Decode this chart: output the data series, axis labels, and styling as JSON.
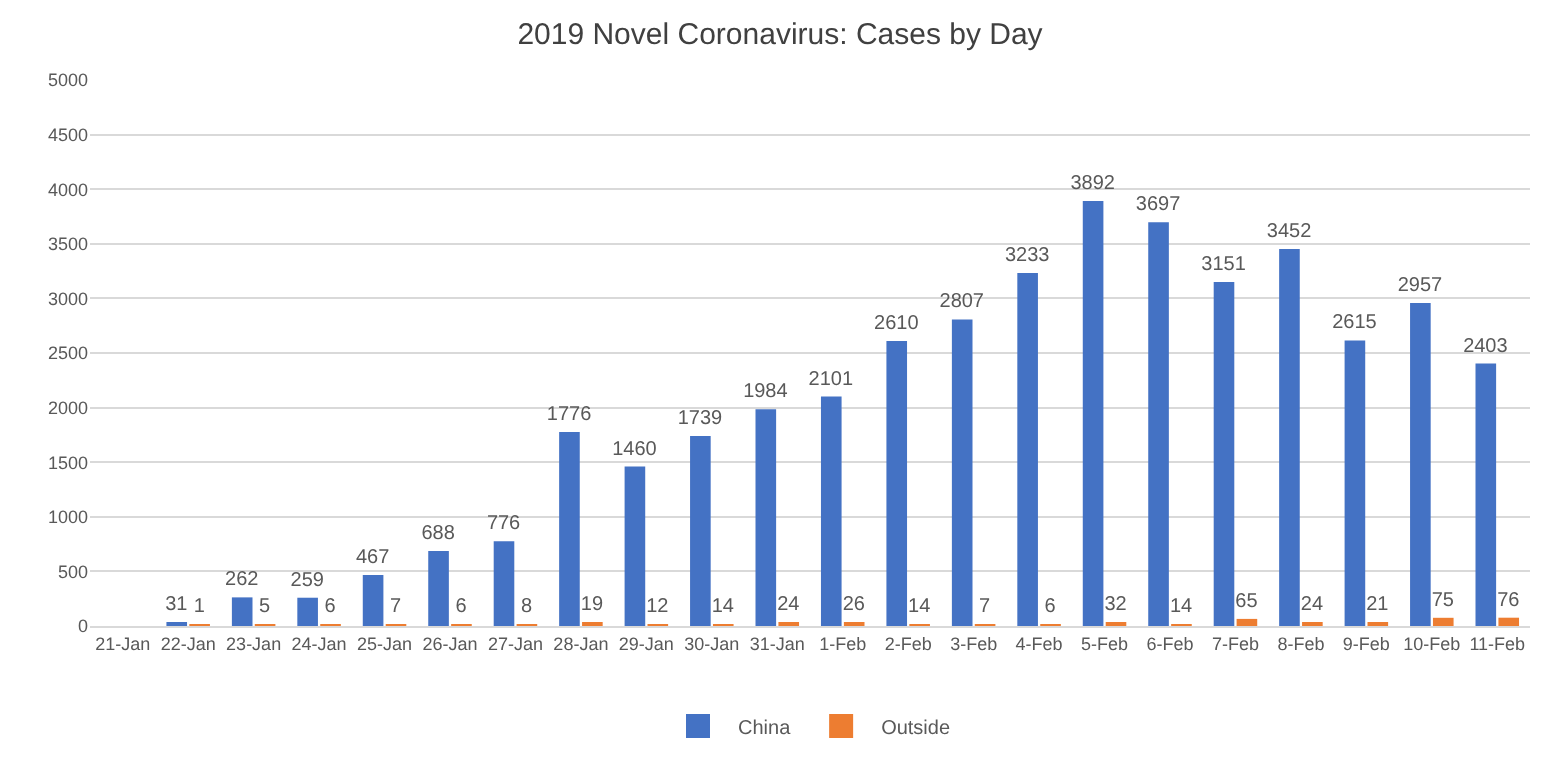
{
  "chart_data": {
    "type": "bar",
    "title": "2019 Novel Coronavirus: Cases by Day",
    "categories": [
      "21-Jan",
      "22-Jan",
      "23-Jan",
      "24-Jan",
      "25-Jan",
      "26-Jan",
      "27-Jan",
      "28-Jan",
      "29-Jan",
      "30-Jan",
      "31-Jan",
      "1-Feb",
      "2-Feb",
      "3-Feb",
      "4-Feb",
      "5-Feb",
      "6-Feb",
      "7-Feb",
      "8-Feb",
      "9-Feb",
      "10-Feb",
      "11-Feb"
    ],
    "series": [
      {
        "name": "China",
        "color": "#4472c4",
        "values": [
          null,
          31,
          262,
          259,
          467,
          688,
          776,
          1776,
          1460,
          1739,
          1984,
          2101,
          2610,
          2807,
          3233,
          3892,
          3697,
          3151,
          3452,
          2615,
          2957,
          2403
        ]
      },
      {
        "name": "Outside",
        "color": "#ed7d31",
        "values": [
          null,
          1,
          5,
          6,
          7,
          6,
          8,
          19,
          12,
          14,
          24,
          26,
          14,
          7,
          6,
          32,
          14,
          65,
          24,
          21,
          75,
          76
        ]
      }
    ],
    "ylim": [
      0,
      5000
    ],
    "yticks": [
      0,
      500,
      1000,
      1500,
      2000,
      2500,
      3000,
      3500,
      4000,
      4500,
      5000
    ],
    "grid": "y",
    "legend": "bottom",
    "data_labels": true
  }
}
